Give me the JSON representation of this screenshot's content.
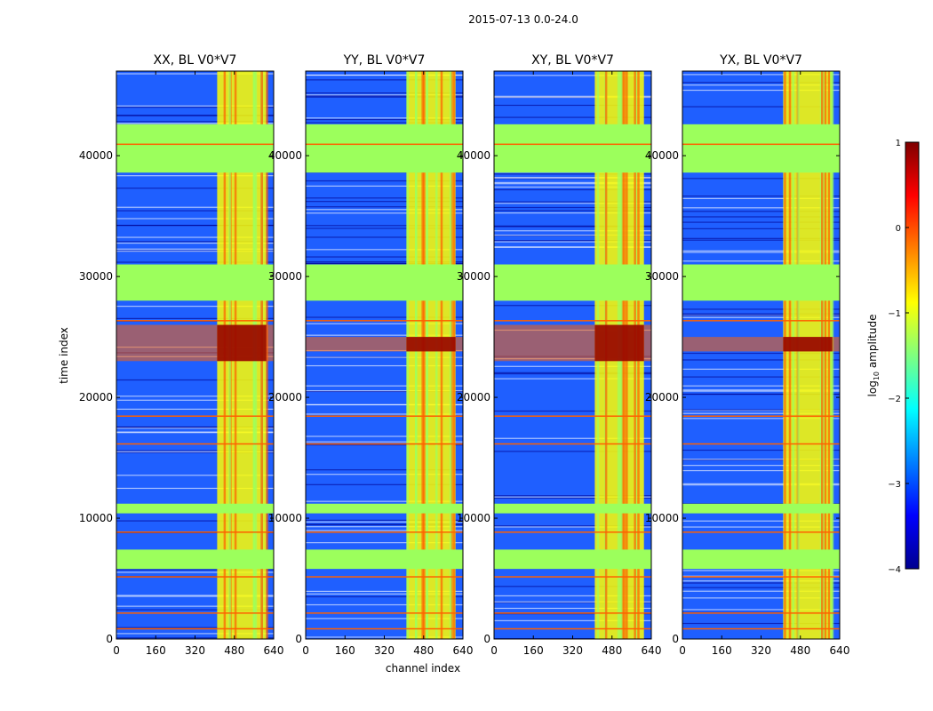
{
  "suptitle": "2015-07-13 0.0-24.0",
  "chart_data": {
    "type": "heatmap",
    "suptitle": "2015-07-13 0.0-24.0",
    "xlabel": "channel index",
    "ylabel": "time index",
    "xlim": [
      0,
      640
    ],
    "ylim": [
      0,
      47000
    ],
    "x_ticks": [
      0,
      160,
      320,
      480,
      640
    ],
    "x_tick_labels": [
      "0",
      "160",
      "320",
      "480",
      "640"
    ],
    "y_ticks": [
      0,
      10000,
      20000,
      30000,
      40000
    ],
    "y_tick_labels": [
      "0",
      "10000",
      "20000",
      "30000",
      "40000"
    ],
    "colorbar": {
      "label": "log10 amplitude",
      "label_base": "log",
      "label_sub": "10",
      "label_rest": " amplitude",
      "range": [
        -4,
        1
      ],
      "ticks": [
        1,
        0,
        -1,
        -2,
        -3,
        -4
      ],
      "tick_labels": [
        "1",
        "0",
        "−1",
        "−2",
        "−3",
        "−4"
      ],
      "colormap": "jet"
    },
    "panels": [
      {
        "title": "XX, BL V0*V7",
        "id": "xx",
        "bright_rows": [
          [
            23000,
            26000
          ]
        ]
      },
      {
        "title": "YY, BL V0*V7",
        "id": "yy",
        "bright_rows": [
          [
            23800,
            25000
          ]
        ]
      },
      {
        "title": "XY, BL V0*V7",
        "id": "xy",
        "bright_rows": [
          [
            23000,
            26000
          ]
        ]
      },
      {
        "title": "YX, BL V0*V7",
        "id": "yx",
        "bright_rows": [
          [
            23800,
            25000
          ]
        ]
      }
    ],
    "flagged_rows": [
      [
        5800,
        7400
      ],
      [
        10400,
        11200
      ],
      [
        28000,
        31000
      ],
      [
        38600,
        42600
      ]
    ],
    "rfi_channel_range": [
      410,
      610
    ]
  },
  "colors": {
    "background": "#00008f",
    "noise": "#1f5fff",
    "flag": "#9cff5c",
    "rfi": "#ffff00",
    "hot": "#ff6000",
    "saturated": "#8f0000"
  }
}
